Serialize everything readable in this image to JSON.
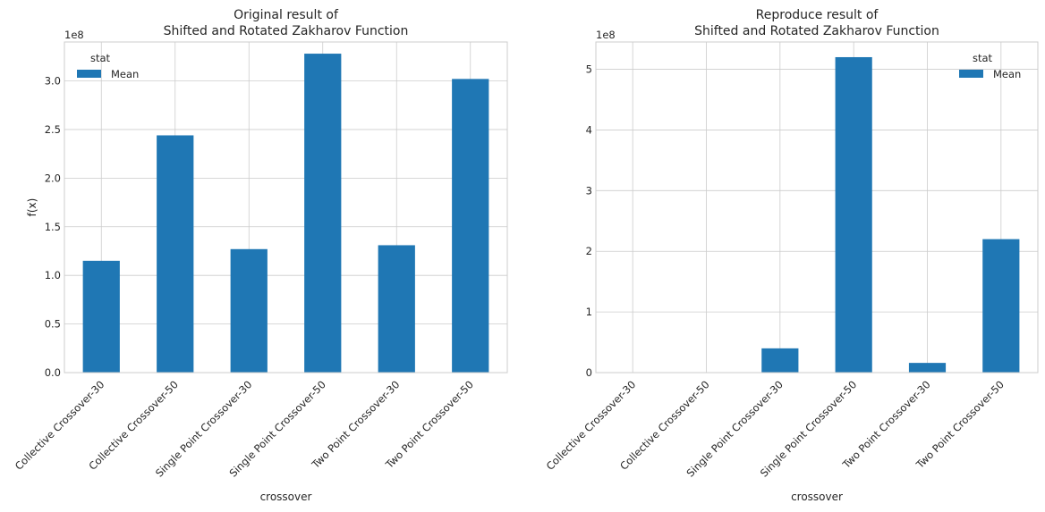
{
  "chart_data": [
    {
      "type": "bar",
      "title_line1": "Original result of",
      "title_line2": "Shifted and Rotated Zakharov Function",
      "xlabel": "crossover",
      "ylabel": "f(x)",
      "y_offset_label": "1e8",
      "ylim": [
        0,
        3.4
      ],
      "yticks": [
        "0.0",
        "0.5",
        "1.0",
        "1.5",
        "2.0",
        "2.5",
        "3.0"
      ],
      "ytick_values": [
        0,
        0.5,
        1.0,
        1.5,
        2.0,
        2.5,
        3.0
      ],
      "categories": [
        "Collective Crossover-30",
        "Collective Crossover-50",
        "Single Point Crossover-30",
        "Single Point Crossover-50",
        "Two Point Crossover-30",
        "Two Point Crossover-50"
      ],
      "series": [
        {
          "name": "Mean",
          "values": [
            1.15,
            2.44,
            1.27,
            3.28,
            1.31,
            3.02
          ]
        }
      ],
      "legend_title": "stat",
      "legend_position": "upper-left",
      "grid": true
    },
    {
      "type": "bar",
      "title_line1": "Reproduce result of",
      "title_line2": "Shifted and Rotated Zakharov Function",
      "xlabel": "crossover",
      "ylabel": "",
      "y_offset_label": "1e8",
      "ylim": [
        0,
        5.45
      ],
      "yticks": [
        "0",
        "1",
        "2",
        "3",
        "4",
        "5"
      ],
      "ytick_values": [
        0,
        1,
        2,
        3,
        4,
        5
      ],
      "categories": [
        "Collective Crossover-30",
        "Collective Crossover-50",
        "Single Point Crossover-30",
        "Single Point Crossover-50",
        "Two Point Crossover-30",
        "Two Point Crossover-50"
      ],
      "series": [
        {
          "name": "Mean",
          "values": [
            0.0,
            0.0,
            0.4,
            5.2,
            0.16,
            2.2
          ]
        }
      ],
      "legend_title": "stat",
      "legend_position": "upper-right",
      "grid": true
    }
  ],
  "colors": {
    "bar": "#1f77b4",
    "grid": "#cccccc",
    "frame": "#cccccc",
    "text": "#262626"
  }
}
